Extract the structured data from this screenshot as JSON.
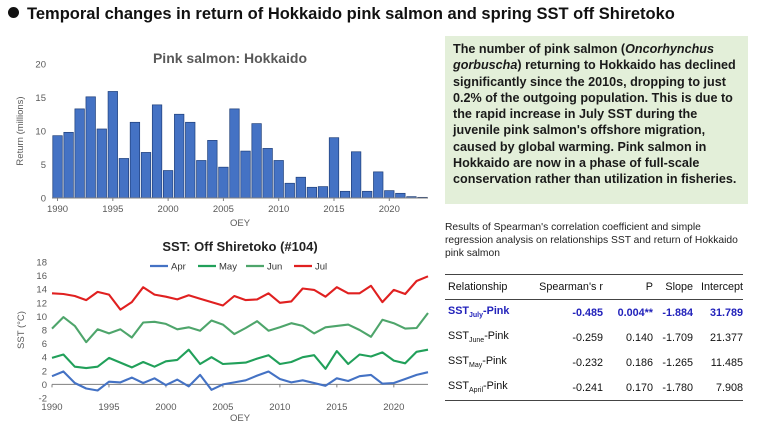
{
  "page": {
    "title": "Temporal changes in return of Hokkaido pink salmon and spring SST off Shiretoko"
  },
  "summary": {
    "part1": "The number of pink salmon (",
    "species": "Oncorhynchus gorbuscha",
    "part2": ") returning to Hokkaido has declined significantly since the 2010s, dropping to just 0.2% of the outgoing population. This is due to the rapid increase in July SST during the juvenile pink salmon's offshore migration, caused by global warming. Pink salmon in Hokkaido are now in a phase of full-scale conservation rather than utilization in fisheries."
  },
  "table": {
    "caption": "Results of Spearman's correlation coefficient and simple regression analysis on relationships SST and return of Hokkaido pink salmon",
    "headers": [
      "Relationship",
      "Spearman's r",
      "P",
      "Slope",
      "Intercept"
    ],
    "rows": [
      {
        "prefix": "SST",
        "sub": "July",
        "suffix": "-Pink",
        "r": "-0.485",
        "p": "0.004**",
        "slope": "-1.884",
        "intercept": "31.789"
      },
      {
        "prefix": "SST",
        "sub": "June",
        "suffix": "-Pink",
        "r": "-0.259",
        "p": "0.140",
        "slope": "-1.709",
        "intercept": "21.377"
      },
      {
        "prefix": "SST",
        "sub": "May",
        "suffix": "-Pink",
        "r": "-0.232",
        "p": "0.186",
        "slope": "-1.265",
        "intercept": "11.485"
      },
      {
        "prefix": "SST",
        "sub": "April",
        "suffix": "-Pink",
        "r": "-0.241",
        "p": "0.170",
        "slope": "-1.780",
        "intercept": "7.908"
      }
    ]
  },
  "colors": {
    "bar": "#4472c4",
    "apr": "#4472c4",
    "may": "#21a05a",
    "jun": "#4ea56b",
    "jul": "#e02020",
    "highlight_text": "#2222bb",
    "textbox_bg": "#e3efd9"
  },
  "chart_data": [
    {
      "type": "bar",
      "title": "Pink salmon: Hokkaido",
      "xlabel": "OEY",
      "ylabel": "Return (millions)",
      "xlim": [
        1989.5,
        2023.5
      ],
      "ylim": [
        0,
        20
      ],
      "yticks": [
        0,
        5,
        10,
        15,
        20
      ],
      "xticks": [
        1990,
        1995,
        2000,
        2005,
        2010,
        2015,
        2020
      ],
      "x": [
        1990,
        1991,
        1992,
        1993,
        1994,
        1995,
        1996,
        1997,
        1998,
        1999,
        2000,
        2001,
        2002,
        2003,
        2004,
        2005,
        2006,
        2007,
        2008,
        2009,
        2010,
        2011,
        2012,
        2013,
        2014,
        2015,
        2016,
        2017,
        2018,
        2019,
        2020,
        2021,
        2022,
        2023
      ],
      "values": [
        9.3,
        9.8,
        13.3,
        15.1,
        10.3,
        15.9,
        5.9,
        11.3,
        6.8,
        13.9,
        4.1,
        12.5,
        11.3,
        5.6,
        8.6,
        4.6,
        13.3,
        7.0,
        11.1,
        7.4,
        5.6,
        2.2,
        3.1,
        1.6,
        1.7,
        9.0,
        1.0,
        6.9,
        1.0,
        3.9,
        1.1,
        0.7,
        0.2,
        0.1
      ]
    },
    {
      "type": "line",
      "title": "SST: Off Shiretoko (#104)",
      "xlabel": "OEY",
      "ylabel": "SST (°C)",
      "xlim": [
        1990,
        2023
      ],
      "ylim": [
        -2,
        18
      ],
      "yticks": [
        -2,
        0,
        2,
        4,
        6,
        8,
        10,
        12,
        14,
        16,
        18
      ],
      "xticks": [
        1990,
        1995,
        2000,
        2005,
        2010,
        2015,
        2020
      ],
      "legend": "top",
      "x": [
        1990,
        1991,
        1992,
        1993,
        1994,
        1995,
        1996,
        1997,
        1998,
        1999,
        2000,
        2001,
        2002,
        2003,
        2004,
        2005,
        2006,
        2007,
        2008,
        2009,
        2010,
        2011,
        2012,
        2013,
        2014,
        2015,
        2016,
        2017,
        2018,
        2019,
        2020,
        2021,
        2022,
        2023
      ],
      "series": [
        {
          "name": "Apr",
          "color": "#4472c4",
          "values": [
            1.2,
            1.9,
            0.2,
            -0.6,
            -0.9,
            0.4,
            0.3,
            1.0,
            0.2,
            0.9,
            -0.1,
            0.7,
            -0.3,
            1.4,
            -0.8,
            0.0,
            0.3,
            0.6,
            1.3,
            1.9,
            0.8,
            0.3,
            0.6,
            0.2,
            -0.2,
            0.9,
            0.5,
            1.2,
            1.4,
            0.1,
            0.2,
            0.8,
            1.4,
            1.8
          ]
        },
        {
          "name": "May",
          "color": "#21a05a",
          "values": [
            3.9,
            4.4,
            2.6,
            2.4,
            2.6,
            3.9,
            3.2,
            2.5,
            3.3,
            2.6,
            3.4,
            3.6,
            5.1,
            3.0,
            4.0,
            3.0,
            3.1,
            3.2,
            3.8,
            4.3,
            3.0,
            3.3,
            4.0,
            4.3,
            2.3,
            4.9,
            3.0,
            4.4,
            4.1,
            4.7,
            3.5,
            3.1,
            4.8,
            5.1
          ]
        },
        {
          "name": "Jun",
          "color": "#4ea56b",
          "values": [
            8.2,
            9.9,
            8.6,
            6.2,
            8.1,
            7.5,
            8.1,
            6.9,
            9.1,
            9.2,
            8.9,
            8.1,
            8.4,
            7.9,
            9.4,
            8.8,
            7.4,
            8.3,
            9.3,
            7.9,
            8.4,
            9.0,
            8.6,
            7.5,
            8.4,
            8.6,
            8.8,
            8.0,
            7.0,
            9.5,
            9.0,
            8.2,
            8.3,
            10.5
          ]
        },
        {
          "name": "Jul",
          "color": "#e02020",
          "values": [
            13.4,
            13.3,
            13.0,
            12.4,
            13.6,
            13.2,
            11.0,
            12.1,
            14.3,
            13.2,
            12.9,
            12.5,
            13.1,
            12.6,
            12.1,
            11.6,
            13.0,
            12.4,
            12.5,
            13.4,
            12.0,
            12.2,
            14.1,
            13.9,
            12.9,
            14.3,
            13.4,
            13.4,
            14.5,
            12.1,
            13.9,
            13.3,
            15.2,
            15.9
          ]
        }
      ]
    }
  ]
}
